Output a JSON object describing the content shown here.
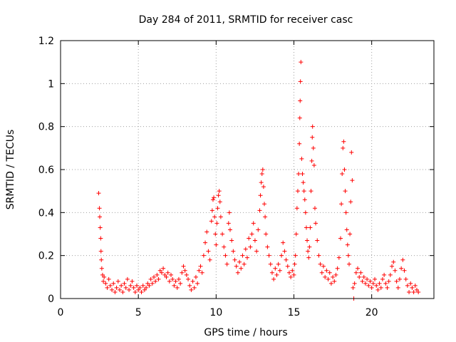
{
  "chart_data": {
    "type": "scatter",
    "title": "Day 284 of 2011, SRMTID for receiver casc",
    "xlabel": "GPS time / hours",
    "ylabel": "SRMTID / TECUs",
    "xlim": [
      0,
      24
    ],
    "ylim": [
      0,
      1.2
    ],
    "xticks": [
      0,
      5,
      10,
      15,
      20
    ],
    "xtick_labels": [
      "0",
      "5",
      "10",
      "15",
      "20"
    ],
    "yticks": [
      0,
      0.2,
      0.4,
      0.6,
      0.8,
      1.0,
      1.2
    ],
    "ytick_labels": [
      "0",
      "0.2",
      "0.4",
      "0.6",
      "0.8",
      "1",
      "1.2"
    ],
    "grid": true,
    "marker": "+",
    "series": [
      {
        "name": "SRMTID",
        "color": "#ff0000",
        "points": [
          [
            2.45,
            0.49
          ],
          [
            2.5,
            0.42
          ],
          [
            2.52,
            0.38
          ],
          [
            2.55,
            0.33
          ],
          [
            2.58,
            0.28
          ],
          [
            2.6,
            0.22
          ],
          [
            2.62,
            0.18
          ],
          [
            2.65,
            0.14
          ],
          [
            2.7,
            0.11
          ],
          [
            2.75,
            0.08
          ],
          [
            2.8,
            0.1
          ],
          [
            2.9,
            0.07
          ],
          [
            3.0,
            0.05
          ],
          [
            3.1,
            0.09
          ],
          [
            3.2,
            0.06
          ],
          [
            3.3,
            0.04
          ],
          [
            3.4,
            0.07
          ],
          [
            3.5,
            0.03
          ],
          [
            3.6,
            0.05
          ],
          [
            3.7,
            0.08
          ],
          [
            3.8,
            0.04
          ],
          [
            3.9,
            0.06
          ],
          [
            4.0,
            0.03
          ],
          [
            4.1,
            0.07
          ],
          [
            4.2,
            0.05
          ],
          [
            4.3,
            0.09
          ],
          [
            4.4,
            0.04
          ],
          [
            4.5,
            0.06
          ],
          [
            4.6,
            0.08
          ],
          [
            4.7,
            0.05
          ],
          [
            4.8,
            0.03
          ],
          [
            4.9,
            0.06
          ],
          [
            5.0,
            0.04
          ],
          [
            5.1,
            0.05
          ],
          [
            5.2,
            0.03
          ],
          [
            5.3,
            0.06
          ],
          [
            5.4,
            0.04
          ],
          [
            5.5,
            0.05
          ],
          [
            5.6,
            0.07
          ],
          [
            5.7,
            0.06
          ],
          [
            5.8,
            0.09
          ],
          [
            5.9,
            0.07
          ],
          [
            6.0,
            0.1
          ],
          [
            6.1,
            0.08
          ],
          [
            6.2,
            0.11
          ],
          [
            6.3,
            0.09
          ],
          [
            6.4,
            0.13
          ],
          [
            6.5,
            0.12
          ],
          [
            6.6,
            0.14
          ],
          [
            6.7,
            0.11
          ],
          [
            6.8,
            0.1
          ],
          [
            6.9,
            0.12
          ],
          [
            7.0,
            0.08
          ],
          [
            7.1,
            0.11
          ],
          [
            7.2,
            0.09
          ],
          [
            7.3,
            0.06
          ],
          [
            7.4,
            0.08
          ],
          [
            7.5,
            0.05
          ],
          [
            7.6,
            0.09
          ],
          [
            7.7,
            0.07
          ],
          [
            7.8,
            0.12
          ],
          [
            7.9,
            0.15
          ],
          [
            8.0,
            0.13
          ],
          [
            8.1,
            0.11
          ],
          [
            8.2,
            0.09
          ],
          [
            8.3,
            0.06
          ],
          [
            8.4,
            0.04
          ],
          [
            8.5,
            0.08
          ],
          [
            8.6,
            0.05
          ],
          [
            8.7,
            0.1
          ],
          [
            8.8,
            0.07
          ],
          [
            8.9,
            0.13
          ],
          [
            9.0,
            0.15
          ],
          [
            9.1,
            0.12
          ],
          [
            9.2,
            0.2
          ],
          [
            9.3,
            0.26
          ],
          [
            9.4,
            0.31
          ],
          [
            9.5,
            0.22
          ],
          [
            9.6,
            0.18
          ],
          [
            9.7,
            0.36
          ],
          [
            9.75,
            0.41
          ],
          [
            9.8,
            0.46
          ],
          [
            9.85,
            0.47
          ],
          [
            9.9,
            0.38
          ],
          [
            9.95,
            0.3
          ],
          [
            10.0,
            0.25
          ],
          [
            10.05,
            0.35
          ],
          [
            10.1,
            0.42
          ],
          [
            10.15,
            0.48
          ],
          [
            10.2,
            0.5
          ],
          [
            10.25,
            0.45
          ],
          [
            10.3,
            0.38
          ],
          [
            10.4,
            0.3
          ],
          [
            10.5,
            0.24
          ],
          [
            10.6,
            0.2
          ],
          [
            10.7,
            0.16
          ],
          [
            10.8,
            0.35
          ],
          [
            10.85,
            0.4
          ],
          [
            10.9,
            0.32
          ],
          [
            11.0,
            0.27
          ],
          [
            11.1,
            0.22
          ],
          [
            11.2,
            0.18
          ],
          [
            11.3,
            0.15
          ],
          [
            11.4,
            0.12
          ],
          [
            11.5,
            0.17
          ],
          [
            11.6,
            0.14
          ],
          [
            11.7,
            0.2
          ],
          [
            11.8,
            0.16
          ],
          [
            11.9,
            0.23
          ],
          [
            12.0,
            0.19
          ],
          [
            12.1,
            0.28
          ],
          [
            12.2,
            0.24
          ],
          [
            12.3,
            0.3
          ],
          [
            12.4,
            0.35
          ],
          [
            12.5,
            0.27
          ],
          [
            12.6,
            0.22
          ],
          [
            12.7,
            0.32
          ],
          [
            12.8,
            0.41
          ],
          [
            12.85,
            0.48
          ],
          [
            12.9,
            0.54
          ],
          [
            12.95,
            0.58
          ],
          [
            13.0,
            0.6
          ],
          [
            13.05,
            0.52
          ],
          [
            13.1,
            0.44
          ],
          [
            13.15,
            0.38
          ],
          [
            13.2,
            0.3
          ],
          [
            13.3,
            0.24
          ],
          [
            13.4,
            0.2
          ],
          [
            13.5,
            0.16
          ],
          [
            13.6,
            0.12
          ],
          [
            13.7,
            0.09
          ],
          [
            13.8,
            0.14
          ],
          [
            13.9,
            0.11
          ],
          [
            14.0,
            0.16
          ],
          [
            14.1,
            0.13
          ],
          [
            14.2,
            0.2
          ],
          [
            14.3,
            0.26
          ],
          [
            14.4,
            0.22
          ],
          [
            14.5,
            0.18
          ],
          [
            14.6,
            0.15
          ],
          [
            14.7,
            0.12
          ],
          [
            14.8,
            0.1
          ],
          [
            14.9,
            0.13
          ],
          [
            15.0,
            0.11
          ],
          [
            15.05,
            0.16
          ],
          [
            15.1,
            0.2
          ],
          [
            15.15,
            0.3
          ],
          [
            15.2,
            0.42
          ],
          [
            15.25,
            0.5
          ],
          [
            15.3,
            0.58
          ],
          [
            15.35,
            0.72
          ],
          [
            15.38,
            0.84
          ],
          [
            15.4,
            0.92
          ],
          [
            15.42,
            1.01
          ],
          [
            15.45,
            1.1
          ],
          [
            15.5,
            0.65
          ],
          [
            15.55,
            0.58
          ],
          [
            15.6,
            0.54
          ],
          [
            15.65,
            0.5
          ],
          [
            15.7,
            0.46
          ],
          [
            15.75,
            0.4
          ],
          [
            15.8,
            0.33
          ],
          [
            15.85,
            0.27
          ],
          [
            15.9,
            0.22
          ],
          [
            15.95,
            0.19
          ],
          [
            16.0,
            0.24
          ],
          [
            16.05,
            0.33
          ],
          [
            16.1,
            0.5
          ],
          [
            16.15,
            0.64
          ],
          [
            16.18,
            0.75
          ],
          [
            16.2,
            0.8
          ],
          [
            16.25,
            0.7
          ],
          [
            16.3,
            0.62
          ],
          [
            16.35,
            0.42
          ],
          [
            16.4,
            0.35
          ],
          [
            16.5,
            0.27
          ],
          [
            16.6,
            0.2
          ],
          [
            16.7,
            0.16
          ],
          [
            16.8,
            0.12
          ],
          [
            16.9,
            0.15
          ],
          [
            17.0,
            0.1
          ],
          [
            17.1,
            0.13
          ],
          [
            17.2,
            0.09
          ],
          [
            17.3,
            0.12
          ],
          [
            17.4,
            0.07
          ],
          [
            17.5,
            0.1
          ],
          [
            17.6,
            0.08
          ],
          [
            17.7,
            0.11
          ],
          [
            17.8,
            0.14
          ],
          [
            17.9,
            0.19
          ],
          [
            18.0,
            0.28
          ],
          [
            18.05,
            0.44
          ],
          [
            18.1,
            0.58
          ],
          [
            18.15,
            0.7
          ],
          [
            18.2,
            0.73
          ],
          [
            18.25,
            0.6
          ],
          [
            18.3,
            0.5
          ],
          [
            18.35,
            0.4
          ],
          [
            18.4,
            0.32
          ],
          [
            18.45,
            0.25
          ],
          [
            18.5,
            0.2
          ],
          [
            18.55,
            0.16
          ],
          [
            18.6,
            0.3
          ],
          [
            18.65,
            0.45
          ],
          [
            18.7,
            0.68
          ],
          [
            18.75,
            0.55
          ],
          [
            18.8,
            0.05
          ],
          [
            18.85,
            0.0
          ],
          [
            18.9,
            0.07
          ],
          [
            19.0,
            0.12
          ],
          [
            19.1,
            0.14
          ],
          [
            19.2,
            0.1
          ],
          [
            19.3,
            0.12
          ],
          [
            19.4,
            0.08
          ],
          [
            19.5,
            0.1
          ],
          [
            19.6,
            0.07
          ],
          [
            19.7,
            0.09
          ],
          [
            19.8,
            0.06
          ],
          [
            19.9,
            0.08
          ],
          [
            20.0,
            0.05
          ],
          [
            20.1,
            0.07
          ],
          [
            20.2,
            0.09
          ],
          [
            20.3,
            0.06
          ],
          [
            20.4,
            0.04
          ],
          [
            20.5,
            0.07
          ],
          [
            20.6,
            0.05
          ],
          [
            20.7,
            0.09
          ],
          [
            20.8,
            0.11
          ],
          [
            20.9,
            0.07
          ],
          [
            21.0,
            0.05
          ],
          [
            21.1,
            0.08
          ],
          [
            21.2,
            0.11
          ],
          [
            21.3,
            0.15
          ],
          [
            21.4,
            0.17
          ],
          [
            21.5,
            0.13
          ],
          [
            21.6,
            0.08
          ],
          [
            21.7,
            0.05
          ],
          [
            21.8,
            0.09
          ],
          [
            21.9,
            0.14
          ],
          [
            22.0,
            0.18
          ],
          [
            22.1,
            0.13
          ],
          [
            22.2,
            0.09
          ],
          [
            22.3,
            0.06
          ],
          [
            22.4,
            0.03
          ],
          [
            22.5,
            0.07
          ],
          [
            22.6,
            0.05
          ],
          [
            22.7,
            0.03
          ],
          [
            22.8,
            0.06
          ],
          [
            22.9,
            0.04
          ],
          [
            23.0,
            0.03
          ]
        ]
      }
    ]
  }
}
